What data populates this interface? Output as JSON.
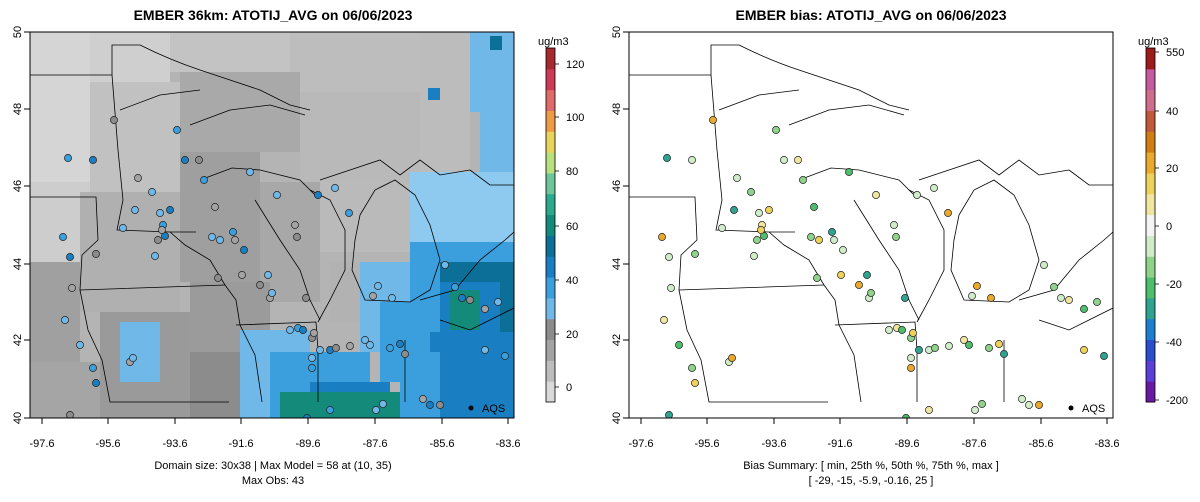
{
  "colors": {
    "conc_scale": [
      "#d9d9d9",
      "#bdbdbd",
      "#a3a3a3",
      "#8c8c8c",
      "#6fb8e8",
      "#3a9fdc",
      "#1a7fc2",
      "#0b6f97",
      "#138a7a",
      "#2aa98c",
      "#6cc69a",
      "#b8e07c",
      "#e8d35c",
      "#ef9a45",
      "#e06a6a",
      "#cc3a55",
      "#a6292f"
    ],
    "bias_scale": [
      "#6a1aa0",
      "#5b3fd8",
      "#2a4ecc",
      "#1e7fcf",
      "#2fa390",
      "#4ebd6c",
      "#8fd38a",
      "#d0ecc8",
      "#f4f4f4",
      "#f1e6a0",
      "#eed25a",
      "#e8a92c",
      "#d17d14",
      "#c05a3a",
      "#d06d8d",
      "#c45aa0",
      "#9e1b1b"
    ],
    "map_line": "#000000",
    "grid_gray": "#c8c8c8"
  },
  "left_panel": {
    "title": "EMBER 36km: ATOTIJ_AVG on 06/06/2023",
    "x_ticks": [
      "-97.6",
      "-95.6",
      "-93.6",
      "-91.6",
      "-89.6",
      "-87.6",
      "-85.6",
      "-83.6"
    ],
    "y_ticks": [
      "40",
      "42",
      "44",
      "46",
      "48",
      "50"
    ],
    "legend_unit": "ug/m3",
    "legend_ticks": [
      "120",
      "100",
      "80",
      "60",
      "40",
      "20",
      "0"
    ],
    "legend_marker": "AQS",
    "caption_line1": "Domain size: 30x38 | Max Model = 58 at (10, 35)",
    "caption_line2": "Max Obs: 43"
  },
  "right_panel": {
    "title": "EMBER bias: ATOTIJ_AVG on 06/06/2023",
    "x_ticks": [
      "-97.6",
      "-95.6",
      "-93.6",
      "-91.6",
      "-89.6",
      "-87.6",
      "-85.6",
      "-83.6"
    ],
    "y_ticks": [
      "40",
      "42",
      "44",
      "46",
      "48",
      "50"
    ],
    "legend_unit": "ug/m3",
    "legend_ticks": [
      "550",
      "40",
      "20",
      "0",
      "-20",
      "-40",
      "-200"
    ],
    "legend_marker": "AQS",
    "caption_line1": "Bias Summary: [ min, 25th %, 50th %, 75th %, max ]",
    "caption_line2": "[ -29,  -15,   -5.9,   -0.16,   25 ]"
  }
}
